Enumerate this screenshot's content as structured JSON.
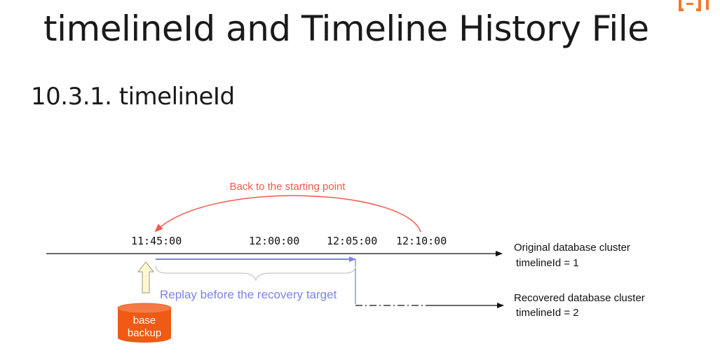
{
  "slide": {
    "title": "timelineId and Timeline History File",
    "section": "10.3.1. timelineId"
  },
  "diagram": {
    "back_label": "Back to the starting point",
    "times": [
      "11:45:00",
      "12:00:00",
      "12:05:00",
      "12:10:00"
    ],
    "original_label": "Original database cluster",
    "original_timeline": "timelineId = 1",
    "replay_label": "Replay before the recovery target",
    "recovered_label": "Recovered database cluster",
    "recovered_timeline": "timelineId = 2",
    "backup_label_line1": "base",
    "backup_label_line2": "backup"
  },
  "colors": {
    "red_arrow": "#f05a4a",
    "blue_arrow": "#7b83ee",
    "backup_orange": "#f05a14",
    "up_arrow_fill": "#fdf7d2",
    "logo_orange": "#f07a2a"
  },
  "icons": {
    "corner": "brand-logo-icon",
    "backup": "database-cylinder-icon",
    "up_arrow": "up-arrow-icon"
  }
}
